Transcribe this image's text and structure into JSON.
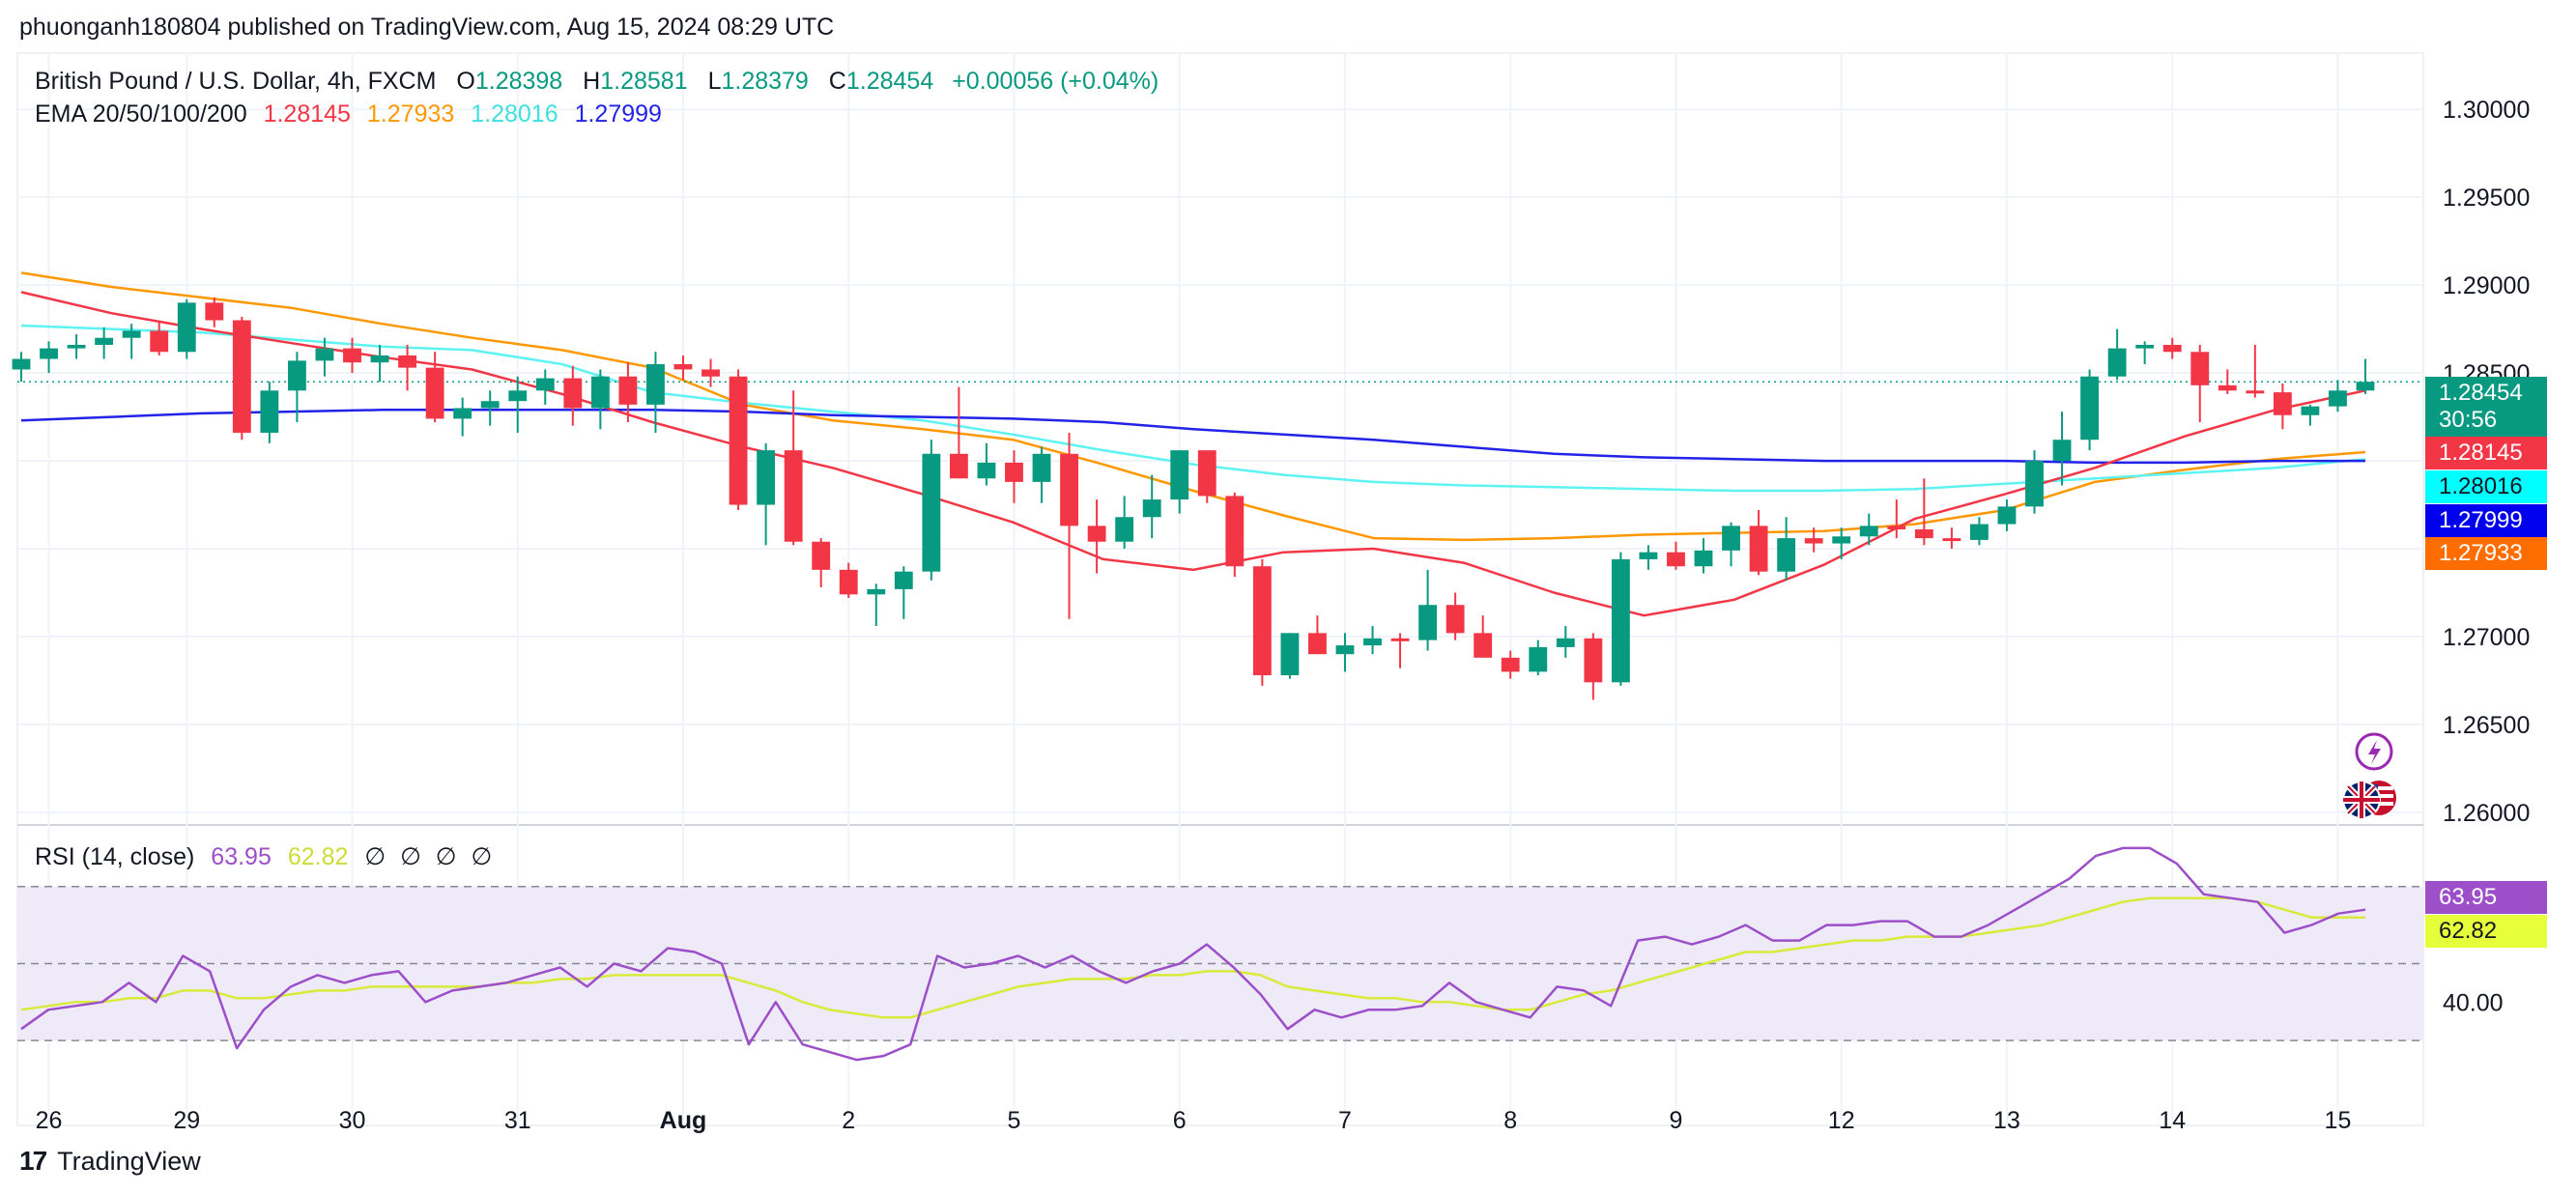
{
  "publisher_line": "phuonganh180804 published on TradingView.com, Aug 15, 2024 08:29 UTC",
  "brand": "TradingView",
  "brand_logo": "17",
  "legend": {
    "symbol": "British Pound / U.S. Dollar, 4h, FXCM",
    "open_label": "O",
    "open": "1.28398",
    "high_label": "H",
    "high": "1.28581",
    "low_label": "L",
    "low": "1.28379",
    "close_label": "C",
    "close": "1.28454",
    "change": "+0.00056 (+0.04%)",
    "ema_label": "EMA 20/50/100/200",
    "ema20": "1.28145",
    "ema50": "1.27933",
    "ema100": "1.28016",
    "ema200": "1.27999",
    "rsi_label": "RSI (14, close)",
    "rsi": "63.95",
    "rsi_ma": "62.82",
    "rsi_na": [
      "∅",
      "∅",
      "∅",
      "∅"
    ]
  },
  "price_tags": {
    "last": "1.28454",
    "countdown": "30:56",
    "ema20": "1.28145",
    "ema100": "1.28016",
    "ema200": "1.27999",
    "ema50": "1.27933",
    "rsi": "63.95",
    "rsi_ma": "62.82"
  },
  "colors": {
    "up": "#089981",
    "down": "#f23645",
    "ema20": "#f23645",
    "ema50": "#ff9800",
    "ema100": "#5ef3f3",
    "ema200": "#2323e8",
    "rsi": "#9c4fc9",
    "rsi_ma": "#d8ea3a",
    "rsi_band": "#efeaf8",
    "countdown_bg": "#089981"
  },
  "chart_data": {
    "type": "candlestick",
    "title": "British Pound / U.S. Dollar, 4h, FXCM",
    "x_tick_labels": [
      "26",
      "29",
      "30",
      "31",
      "Aug",
      "2",
      "5",
      "6",
      "7",
      "8",
      "9",
      "12",
      "13",
      "14",
      "15"
    ],
    "y_tick_labels": [
      "1.30000",
      "1.29500",
      "1.29000",
      "1.28500",
      "1.28000",
      "1.27500",
      "1.27000",
      "1.26500",
      "1.26000"
    ],
    "y_ticks": [
      1.3,
      1.295,
      1.29,
      1.285,
      1.28,
      1.275,
      1.27,
      1.265,
      1.26
    ],
    "ylim": [
      1.2595,
      1.3032
    ],
    "grid": true,
    "candles": [
      [
        1.2852,
        1.2862,
        1.2845,
        1.2858
      ],
      [
        1.2858,
        1.2868,
        1.285,
        1.2864
      ],
      [
        1.2864,
        1.2872,
        1.2858,
        1.2866
      ],
      [
        1.2866,
        1.2876,
        1.2858,
        1.287
      ],
      [
        1.287,
        1.2878,
        1.2858,
        1.2874
      ],
      [
        1.2874,
        1.288,
        1.286,
        1.2862
      ],
      [
        1.2862,
        1.2892,
        1.2858,
        1.289
      ],
      [
        1.289,
        1.2893,
        1.2876,
        1.288
      ],
      [
        1.288,
        1.2882,
        1.2812,
        1.2816
      ],
      [
        1.2816,
        1.2845,
        1.281,
        1.284
      ],
      [
        1.284,
        1.2862,
        1.2822,
        1.2857
      ],
      [
        1.2857,
        1.287,
        1.2848,
        1.2864
      ],
      [
        1.2864,
        1.287,
        1.285,
        1.2856
      ],
      [
        1.2856,
        1.2866,
        1.2845,
        1.286
      ],
      [
        1.286,
        1.2866,
        1.284,
        1.2853
      ],
      [
        1.2853,
        1.2862,
        1.2822,
        1.2824
      ],
      [
        1.2824,
        1.2836,
        1.2814,
        1.283
      ],
      [
        1.283,
        1.284,
        1.282,
        1.2834
      ],
      [
        1.2834,
        1.2848,
        1.2816,
        1.284
      ],
      [
        1.284,
        1.2852,
        1.2832,
        1.2847
      ],
      [
        1.2847,
        1.2854,
        1.282,
        1.283
      ],
      [
        1.283,
        1.2852,
        1.2818,
        1.2848
      ],
      [
        1.2848,
        1.2856,
        1.2822,
        1.2832
      ],
      [
        1.2832,
        1.2862,
        1.2816,
        1.2855
      ],
      [
        1.2855,
        1.286,
        1.2846,
        1.2852
      ],
      [
        1.2852,
        1.2858,
        1.2842,
        1.2848
      ],
      [
        1.2848,
        1.2852,
        1.2772,
        1.2775
      ],
      [
        1.2775,
        1.281,
        1.2752,
        1.2806
      ],
      [
        1.2806,
        1.284,
        1.2752,
        1.2754
      ],
      [
        1.2754,
        1.2756,
        1.2728,
        1.2738
      ],
      [
        1.2738,
        1.2742,
        1.2722,
        1.2724
      ],
      [
        1.2724,
        1.273,
        1.2706,
        1.2727
      ],
      [
        1.2727,
        1.274,
        1.271,
        1.2737
      ],
      [
        1.2737,
        1.2812,
        1.2732,
        1.2804
      ],
      [
        1.2804,
        1.2842,
        1.279,
        1.279
      ],
      [
        1.279,
        1.281,
        1.2786,
        1.2799
      ],
      [
        1.2799,
        1.2806,
        1.2776,
        1.2788
      ],
      [
        1.2788,
        1.2808,
        1.2776,
        1.2804
      ],
      [
        1.2804,
        1.2816,
        1.271,
        1.2763
      ],
      [
        1.2763,
        1.2778,
        1.2736,
        1.2754
      ],
      [
        1.2754,
        1.278,
        1.275,
        1.2768
      ],
      [
        1.2768,
        1.2792,
        1.2756,
        1.2778
      ],
      [
        1.2778,
        1.2806,
        1.277,
        1.2806
      ],
      [
        1.2806,
        1.2806,
        1.2776,
        1.278
      ],
      [
        1.278,
        1.2782,
        1.2734,
        1.274
      ],
      [
        1.274,
        1.2744,
        1.2672,
        1.2678
      ],
      [
        1.2678,
        1.2702,
        1.2676,
        1.2702
      ],
      [
        1.2702,
        1.2712,
        1.269,
        1.269
      ],
      [
        1.269,
        1.2702,
        1.268,
        1.2695
      ],
      [
        1.2695,
        1.2706,
        1.269,
        1.2699
      ],
      [
        1.2699,
        1.2702,
        1.2682,
        1.2698
      ],
      [
        1.2698,
        1.2738,
        1.2692,
        1.2718
      ],
      [
        1.2718,
        1.2725,
        1.2698,
        1.2702
      ],
      [
        1.2702,
        1.2712,
        1.269,
        1.2688
      ],
      [
        1.2688,
        1.2692,
        1.2676,
        1.268
      ],
      [
        1.268,
        1.2698,
        1.2678,
        1.2694
      ],
      [
        1.2694,
        1.2706,
        1.2688,
        1.2699
      ],
      [
        1.2699,
        1.2702,
        1.2664,
        1.2674
      ],
      [
        1.2674,
        1.2748,
        1.2672,
        1.2744
      ],
      [
        1.2744,
        1.2752,
        1.2738,
        1.2748
      ],
      [
        1.2748,
        1.2754,
        1.2738,
        1.274
      ],
      [
        1.274,
        1.2756,
        1.2736,
        1.2749
      ],
      [
        1.2749,
        1.2765,
        1.274,
        1.2763
      ],
      [
        1.2763,
        1.2772,
        1.2735,
        1.2737
      ],
      [
        1.2737,
        1.2768,
        1.2732,
        1.2756
      ],
      [
        1.2756,
        1.2762,
        1.2748,
        1.2753
      ],
      [
        1.2753,
        1.2762,
        1.2744,
        1.2757
      ],
      [
        1.2757,
        1.277,
        1.2752,
        1.2763
      ],
      [
        1.2763,
        1.2778,
        1.2756,
        1.2761
      ],
      [
        1.2761,
        1.279,
        1.2752,
        1.2756
      ],
      [
        1.2756,
        1.2762,
        1.275,
        1.2755
      ],
      [
        1.2755,
        1.2768,
        1.2752,
        1.2764
      ],
      [
        1.2764,
        1.2778,
        1.276,
        1.2774
      ],
      [
        1.2774,
        1.2806,
        1.277,
        1.28
      ],
      [
        1.28,
        1.2828,
        1.2786,
        1.2812
      ],
      [
        1.2812,
        1.2852,
        1.2806,
        1.2848
      ],
      [
        1.2848,
        1.2875,
        1.2846,
        1.2864
      ],
      [
        1.2864,
        1.2868,
        1.2855,
        1.2866
      ],
      [
        1.2866,
        1.287,
        1.2858,
        1.2862
      ],
      [
        1.2862,
        1.2866,
        1.2822,
        1.2843
      ],
      [
        1.2843,
        1.2852,
        1.2838,
        1.284
      ],
      [
        1.284,
        1.2866,
        1.2836,
        1.2839
      ],
      [
        1.2839,
        1.2844,
        1.2818,
        1.2826
      ],
      [
        1.2826,
        1.2832,
        1.282,
        1.2831
      ],
      [
        1.2831,
        1.2846,
        1.2828,
        1.284
      ],
      [
        1.284,
        1.2858,
        1.2838,
        1.2845
      ]
    ],
    "ema20": [
      1.2896,
      1.2884,
      1.2875,
      1.2867,
      1.2859,
      1.2852,
      1.2838,
      1.2822,
      1.2808,
      1.2796,
      1.2781,
      1.2765,
      1.2744,
      1.2738,
      1.2748,
      1.275,
      1.2742,
      1.2725,
      1.2712,
      1.2721,
      1.2741,
      1.2767,
      1.2781,
      1.2796,
      1.2814,
      1.2829,
      1.284
    ],
    "ema50": [
      1.2907,
      1.2899,
      1.2893,
      1.2887,
      1.2878,
      1.287,
      1.2863,
      1.2853,
      1.2832,
      1.2823,
      1.2818,
      1.2812,
      1.2798,
      1.2783,
      1.2769,
      1.2756,
      1.2755,
      1.2756,
      1.2758,
      1.2759,
      1.276,
      1.2764,
      1.2772,
      1.2788,
      1.2795,
      1.2801,
      1.2805
    ],
    "ema100": [
      1.2877,
      1.2875,
      1.2873,
      1.2869,
      1.2865,
      1.2863,
      1.2855,
      1.2839,
      1.2833,
      1.2828,
      1.2823,
      1.2815,
      1.2806,
      1.2798,
      1.2792,
      1.2788,
      1.2786,
      1.2785,
      1.2784,
      1.2783,
      1.2783,
      1.2784,
      1.2787,
      1.279,
      1.2793,
      1.2796,
      1.2801
    ],
    "ema200": [
      1.2823,
      1.2825,
      1.2827,
      1.2828,
      1.2829,
      1.2829,
      1.2829,
      1.2829,
      1.2828,
      1.2826,
      1.2825,
      1.2824,
      1.2822,
      1.2818,
      1.2815,
      1.2812,
      1.2808,
      1.2804,
      1.2802,
      1.2801,
      1.28,
      1.28,
      1.28,
      1.2799,
      1.2799,
      1.28,
      1.28
    ],
    "rsi": {
      "type": "line",
      "ylim": [
        18,
        85
      ],
      "y_tick_labels": [
        "40.00"
      ],
      "y_ticks": [
        40
      ],
      "bands": [
        70,
        30
      ],
      "midline": 50,
      "values": [
        33,
        38,
        39,
        40,
        45,
        40,
        52,
        48,
        28,
        38,
        44,
        47,
        45,
        47,
        48,
        40,
        43,
        44,
        45,
        47,
        49,
        44,
        50,
        48,
        54,
        53,
        50,
        29,
        40,
        29,
        27,
        25,
        26,
        29,
        52,
        49,
        50,
        52,
        49,
        52,
        48,
        45,
        48,
        50,
        55,
        49,
        42,
        33,
        38,
        36,
        38,
        38,
        39,
        45,
        40,
        38,
        36,
        44,
        43,
        39,
        56,
        57,
        55,
        57,
        60,
        56,
        56,
        60,
        60,
        61,
        61,
        57,
        57,
        60,
        64,
        68,
        72,
        78,
        80,
        80,
        76,
        68,
        67,
        66,
        58,
        60,
        63,
        64
      ],
      "ma_values": [
        38,
        39,
        40,
        40,
        41,
        41,
        43,
        43,
        41,
        41,
        42,
        43,
        43,
        44,
        44,
        44,
        44,
        44,
        45,
        45,
        46,
        46,
        47,
        47,
        47,
        47,
        47,
        45,
        43,
        40,
        38,
        37,
        36,
        36,
        38,
        40,
        42,
        44,
        45,
        46,
        46,
        46,
        47,
        47,
        48,
        48,
        47,
        44,
        43,
        42,
        41,
        41,
        40,
        40,
        39,
        38,
        38,
        40,
        42,
        43,
        45,
        47,
        49,
        51,
        53,
        53,
        54,
        55,
        56,
        56,
        57,
        57,
        57,
        58,
        59,
        60,
        62,
        64,
        66,
        67,
        67,
        67,
        67,
        66,
        64,
        62,
        62,
        62
      ]
    }
  }
}
